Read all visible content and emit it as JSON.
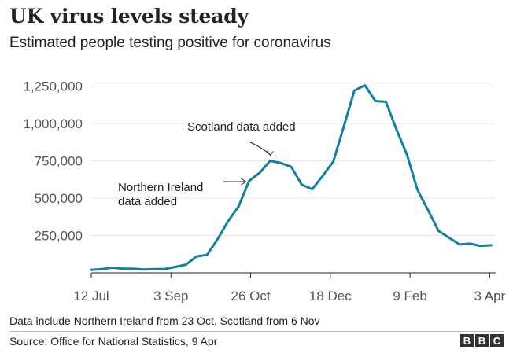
{
  "header": {
    "title": "UK virus levels steady",
    "subtitle": "Estimated people testing positive for coronavirus"
  },
  "footer": {
    "note": "Data include Northern Ireland from 23 Oct, Scotland from 6 Nov",
    "source": "Source: Office for National Statistics, 9 Apr",
    "logo_letters": [
      "B",
      "B",
      "C"
    ]
  },
  "colors": {
    "line": "#1380A1",
    "grid": "#cccccc",
    "axis": "#222222",
    "tick_label": "#555555",
    "text": "#222222"
  },
  "chart_data": {
    "type": "line",
    "title": "UK virus levels steady",
    "subtitle": "Estimated people testing positive for coronavirus",
    "xlabel": "",
    "ylabel": "",
    "ylim": [
      0,
      1300000
    ],
    "yticks": [
      250000,
      500000,
      750000,
      1000000,
      1250000
    ],
    "ytick_labels": [
      "250,000",
      "500,000",
      "750,000",
      "1,000,000",
      "1,250,000"
    ],
    "xlim_days": [
      0,
      269
    ],
    "xticks_days": [
      0,
      53,
      106,
      159,
      212,
      265
    ],
    "xtick_labels": [
      "12 Jul",
      "3 Sep",
      "26 Oct",
      "18 Dec",
      "9 Feb",
      "3 Apr"
    ],
    "grid": true,
    "series": [
      {
        "name": "Estimated people testing positive",
        "x_days": [
          0,
          7,
          14,
          21,
          28,
          35,
          42,
          49,
          56,
          63,
          70,
          77,
          84,
          91,
          98,
          105,
          112,
          119,
          126,
          133,
          140,
          147,
          154,
          161,
          168,
          175,
          182,
          189,
          196,
          203,
          210,
          217,
          224,
          231,
          238,
          245,
          252,
          259,
          266
        ],
        "values": [
          20000,
          25000,
          35000,
          28000,
          28000,
          22000,
          25000,
          26000,
          40000,
          55000,
          110000,
          120000,
          225000,
          345000,
          445000,
          615000,
          670000,
          750000,
          735000,
          710000,
          590000,
          560000,
          650000,
          745000,
          980000,
          1220000,
          1255000,
          1150000,
          1145000,
          960000,
          790000,
          555000,
          420000,
          280000,
          235000,
          190000,
          195000,
          180000,
          185000
        ]
      }
    ],
    "annotations": [
      {
        "lines": [
          "Scotland data added"
        ],
        "x_day": 119,
        "value": 750000
      },
      {
        "lines": [
          "Northern Ireland",
          "data added"
        ],
        "x_day": 105,
        "value": 615000
      }
    ]
  }
}
